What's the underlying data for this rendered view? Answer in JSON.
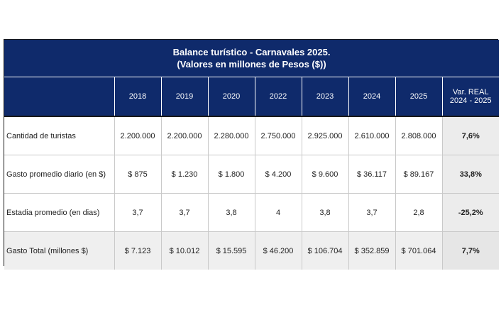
{
  "table": {
    "title": "Balance turístico - Carnavales 2025.",
    "subtitle": "(Valores en millones de Pesos ($))",
    "headers": [
      "",
      "2018",
      "2019",
      "2020",
      "2022",
      "2023",
      "2024",
      "2025"
    ],
    "var_header_line1": "Var. REAL",
    "var_header_line2": "2024 - 2025",
    "rows": [
      {
        "label": "Cantidad de turistas",
        "values": [
          "2.200.000",
          "2.200.000",
          "2.280.000",
          "2.750.000",
          "2.925.000",
          "2.610.000",
          "2.808.000"
        ],
        "var": "7,6%"
      },
      {
        "label": "Gasto promedio diario (en $)",
        "values": [
          "$ 875",
          "$ 1.230",
          "$ 1.800",
          "$ 4.200",
          "$ 9.600",
          "$ 36.117",
          "$ 89.167"
        ],
        "var": "33,8%"
      },
      {
        "label": "Estadia promedio (en dias)",
        "values": [
          "3,7",
          "3,7",
          "3,8",
          "4",
          "3,8",
          "3,7",
          "2,8"
        ],
        "var": "-25,2%"
      },
      {
        "label": "Gasto Total (millones $)",
        "values": [
          "$ 7.123",
          "$ 10.012",
          "$ 15.595",
          "$ 46.200",
          "$ 106.704",
          "$ 352.859",
          "$ 701.064"
        ],
        "var": "7,7%"
      }
    ]
  }
}
